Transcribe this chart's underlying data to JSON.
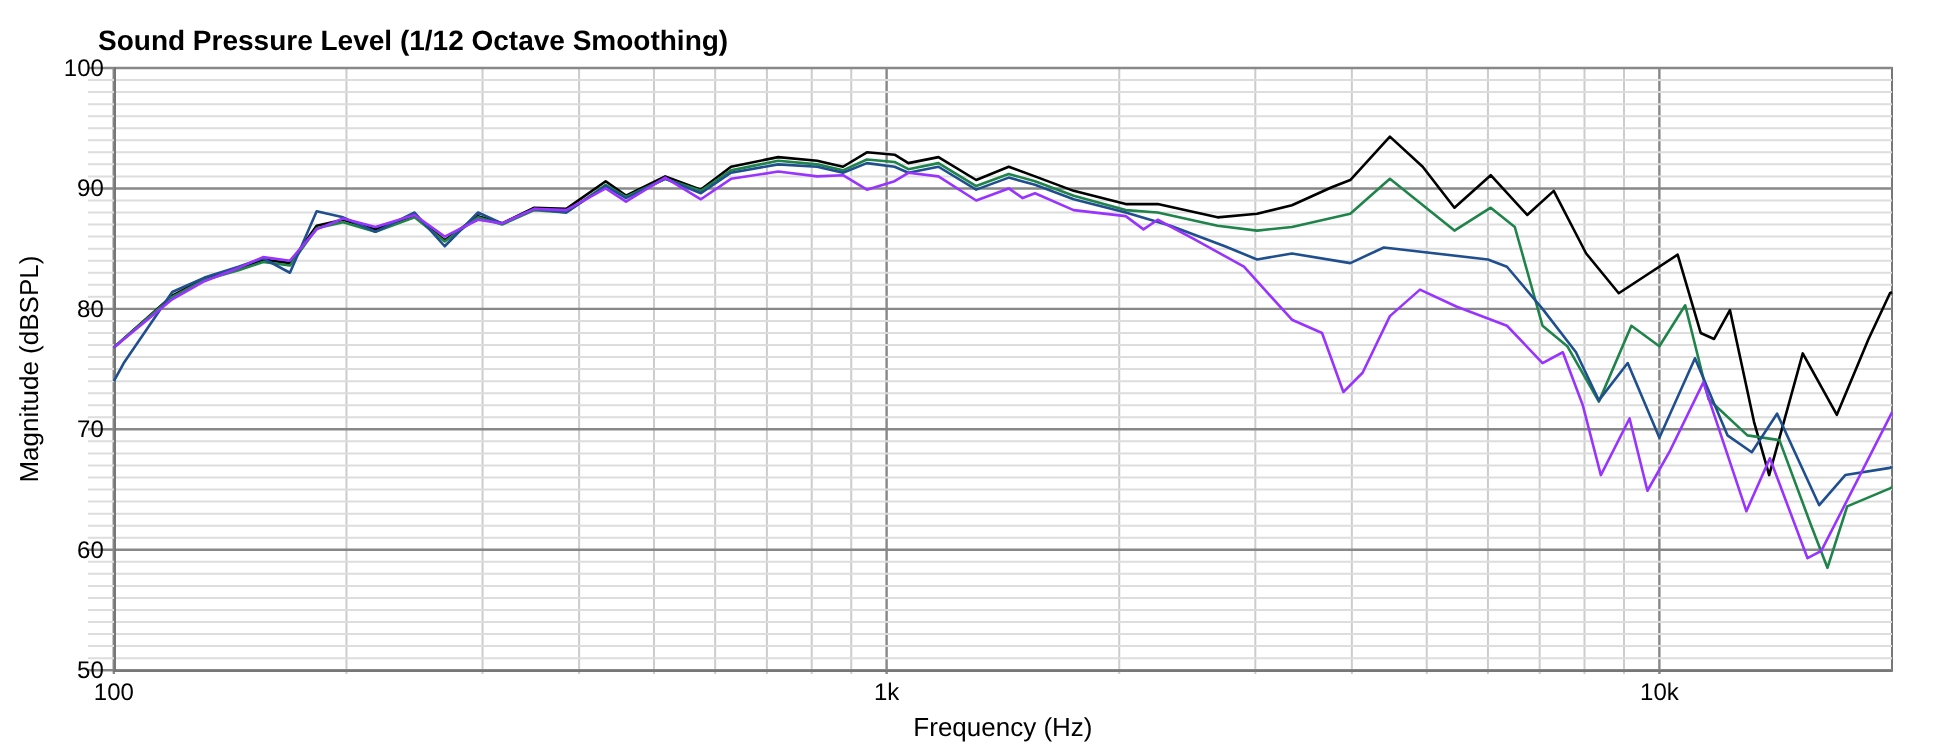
{
  "chart_data": {
    "type": "line",
    "title": "Sound Pressure Level (1/12 Octave Smoothing)",
    "xlabel": "Frequency (Hz)",
    "ylabel": "Magnitude (dBSPL)",
    "log": "x",
    "grid": true,
    "xlim": [
      100,
      20000
    ],
    "ylim": [
      50,
      100
    ],
    "xticks": [
      {
        "value": 100,
        "label": "100"
      },
      {
        "value": 200,
        "label": null
      },
      {
        "value": 300,
        "label": null
      },
      {
        "value": 400,
        "label": null
      },
      {
        "value": 500,
        "label": null
      },
      {
        "value": 600,
        "label": null
      },
      {
        "value": 700,
        "label": null
      },
      {
        "value": 800,
        "label": null
      },
      {
        "value": 900,
        "label": null
      },
      {
        "value": 1000,
        "label": "1k"
      },
      {
        "value": 2000,
        "label": null
      },
      {
        "value": 3000,
        "label": null
      },
      {
        "value": 4000,
        "label": null
      },
      {
        "value": 5000,
        "label": null
      },
      {
        "value": 6000,
        "label": null
      },
      {
        "value": 7000,
        "label": null
      },
      {
        "value": 8000,
        "label": null
      },
      {
        "value": 9000,
        "label": null
      },
      {
        "value": 10000,
        "label": "10k"
      }
    ],
    "yticks": [
      50,
      {
        "value": 51,
        "label": null
      },
      {
        "value": 52,
        "label": null
      },
      {
        "value": 53,
        "label": null
      },
      {
        "value": 54,
        "label": null
      },
      {
        "value": 55,
        "label": null
      },
      {
        "value": 56,
        "label": null
      },
      {
        "value": 57,
        "label": null
      },
      {
        "value": 58,
        "label": null
      },
      {
        "value": 59,
        "label": null
      },
      60,
      {
        "value": 61,
        "label": null
      },
      {
        "value": 62,
        "label": null
      },
      {
        "value": 63,
        "label": null
      },
      {
        "value": 64,
        "label": null
      },
      {
        "value": 65,
        "label": null
      },
      {
        "value": 66,
        "label": null
      },
      {
        "value": 67,
        "label": null
      },
      {
        "value": 68,
        "label": null
      },
      {
        "value": 69,
        "label": null
      },
      70,
      {
        "value": 71,
        "label": null
      },
      {
        "value": 72,
        "label": null
      },
      {
        "value": 73,
        "label": null
      },
      {
        "value": 74,
        "label": null
      },
      {
        "value": 75,
        "label": null
      },
      {
        "value": 76,
        "label": null
      },
      {
        "value": 77,
        "label": null
      },
      {
        "value": 78,
        "label": null
      },
      {
        "value": 79,
        "label": null
      },
      80,
      {
        "value": 81,
        "label": null
      },
      {
        "value": 82,
        "label": null
      },
      {
        "value": 83,
        "label": null
      },
      {
        "value": 84,
        "label": null
      },
      {
        "value": 85,
        "label": null
      },
      {
        "value": 86,
        "label": null
      },
      {
        "value": 87,
        "label": null
      },
      {
        "value": 88,
        "label": null
      },
      {
        "value": 89,
        "label": null
      },
      90,
      {
        "value": 91,
        "label": null
      },
      {
        "value": 92,
        "label": null
      },
      {
        "value": 93,
        "label": null
      },
      {
        "value": 94,
        "label": null
      },
      {
        "value": 95,
        "label": null
      },
      {
        "value": 96,
        "label": null
      },
      {
        "value": 97,
        "label": null
      },
      {
        "value": 98,
        "label": null
      },
      {
        "value": 99,
        "label": null
      },
      100
    ],
    "series": [
      {
        "color": "#000000",
        "x": [
          100,
          119,
          131,
          145,
          156,
          169,
          183,
          198,
          218,
          245,
          268,
          296,
          318,
          350,
          385,
          433,
          460,
          517,
          575,
          629,
          724,
          813,
          878,
          943,
          1024,
          1067,
          1167,
          1306,
          1439,
          1556,
          1746,
          2039,
          2243,
          2681,
          3016,
          3346,
          3767,
          3981,
          4480,
          4940,
          5430,
          6050,
          6745,
          7300,
          8040,
          8860,
          10560,
          11310,
          11770,
          12340,
          13260,
          13870,
          15330,
          16970,
          18650,
          19880,
          20000
        ],
        "values": [
          76.8,
          81.1,
          82.5,
          83.3,
          84.1,
          83.8,
          86.9,
          87.4,
          86.6,
          87.7,
          85.7,
          87.7,
          87.1,
          88.4,
          88.3,
          90.6,
          89.4,
          91.0,
          89.9,
          91.8,
          92.6,
          92.3,
          91.8,
          93.0,
          92.8,
          92.1,
          92.6,
          90.7,
          91.8,
          91.0,
          89.8,
          88.7,
          88.7,
          87.6,
          87.9,
          88.6,
          90.1,
          90.7,
          94.3,
          91.8,
          88.4,
          91.1,
          87.8,
          89.8,
          84.6,
          81.3,
          84.5,
          78.0,
          77.5,
          79.9,
          70.6,
          66.2,
          76.3,
          71.2,
          77.5,
          81.3,
          81.4
        ]
      },
      {
        "color": "#1e8449",
        "x": [
          100,
          119,
          131,
          145,
          156,
          169,
          183,
          198,
          218,
          245,
          268,
          296,
          318,
          350,
          385,
          433,
          460,
          517,
          575,
          629,
          724,
          813,
          878,
          943,
          1024,
          1067,
          1167,
          1306,
          1439,
          1556,
          1746,
          2039,
          2243,
          2681,
          3016,
          3346,
          3981,
          4480,
          5430,
          6050,
          6500,
          7060,
          7600,
          8350,
          9200,
          10000,
          10800,
          11580,
          13000,
          14300,
          15700,
          16500,
          17500,
          19880,
          20000
        ],
        "values": [
          76.8,
          81.0,
          82.4,
          83.2,
          83.9,
          83.6,
          86.7,
          87.2,
          86.4,
          87.6,
          85.6,
          87.6,
          87.0,
          88.2,
          88.0,
          90.3,
          89.3,
          90.8,
          89.8,
          91.5,
          92.3,
          92.0,
          91.5,
          92.4,
          92.2,
          91.6,
          92.1,
          90.2,
          91.2,
          90.6,
          89.4,
          88.2,
          88.0,
          86.9,
          86.5,
          86.8,
          87.9,
          90.8,
          86.5,
          88.4,
          86.8,
          78.6,
          76.9,
          72.3,
          78.6,
          76.9,
          80.3,
          72.5,
          69.5,
          69.1,
          62.1,
          58.5,
          63.6,
          65.1,
          65.2
        ]
      },
      {
        "color": "#1f4f8f",
        "x": [
          100,
          103,
          119,
          131,
          145,
          156,
          169,
          183,
          198,
          218,
          245,
          268,
          296,
          318,
          350,
          385,
          433,
          460,
          517,
          575,
          629,
          724,
          813,
          878,
          943,
          1024,
          1067,
          1167,
          1306,
          1439,
          1556,
          1746,
          2039,
          2330,
          2740,
          3016,
          3346,
          3981,
          4400,
          6000,
          6350,
          7060,
          7800,
          8350,
          9100,
          10000,
          11120,
          12250,
          13170,
          14200,
          16100,
          17400,
          19880,
          20000
        ],
        "values": [
          74.0,
          75.5,
          81.4,
          82.6,
          83.5,
          84.2,
          83.0,
          88.1,
          87.6,
          86.4,
          88.0,
          85.2,
          88.0,
          87.1,
          88.3,
          88.0,
          90.2,
          89.2,
          90.8,
          89.6,
          91.3,
          92.0,
          91.8,
          91.3,
          92.1,
          91.8,
          91.3,
          91.8,
          89.9,
          90.9,
          90.3,
          89.1,
          88.0,
          86.9,
          85.2,
          84.1,
          84.6,
          83.8,
          85.1,
          84.1,
          83.5,
          80.0,
          76.4,
          72.4,
          75.5,
          69.3,
          75.9,
          69.5,
          68.1,
          71.3,
          63.7,
          66.2,
          66.8,
          66.9
        ]
      },
      {
        "color": "#9933ff",
        "x": [
          100,
          119,
          131,
          145,
          156,
          169,
          183,
          198,
          218,
          245,
          268,
          296,
          318,
          350,
          385,
          433,
          460,
          517,
          575,
          629,
          724,
          813,
          878,
          943,
          1024,
          1067,
          1167,
          1306,
          1439,
          1500,
          1556,
          1746,
          2039,
          2150,
          2243,
          2500,
          2900,
          3346,
          3660,
          3900,
          4130,
          4480,
          4900,
          5460,
          6350,
          7060,
          7500,
          7960,
          8400,
          9150,
          9650,
          10300,
          11400,
          12960,
          13900,
          15550,
          16200,
          20000
        ],
        "values": [
          76.8,
          80.8,
          82.3,
          83.4,
          84.3,
          84.0,
          86.6,
          87.5,
          86.8,
          87.8,
          86.0,
          87.4,
          87.1,
          88.3,
          88.2,
          90.0,
          88.9,
          90.9,
          89.1,
          90.8,
          91.4,
          91.0,
          91.1,
          89.9,
          90.6,
          91.3,
          91.0,
          89.0,
          90.0,
          89.2,
          89.6,
          88.2,
          87.7,
          86.6,
          87.4,
          85.8,
          83.5,
          79.1,
          78.0,
          73.1,
          74.7,
          79.4,
          81.6,
          80.2,
          78.6,
          75.5,
          76.4,
          72.0,
          66.2,
          70.9,
          64.9,
          68.1,
          73.9,
          63.2,
          67.6,
          59.3,
          59.9,
          71.4
        ]
      }
    ]
  }
}
